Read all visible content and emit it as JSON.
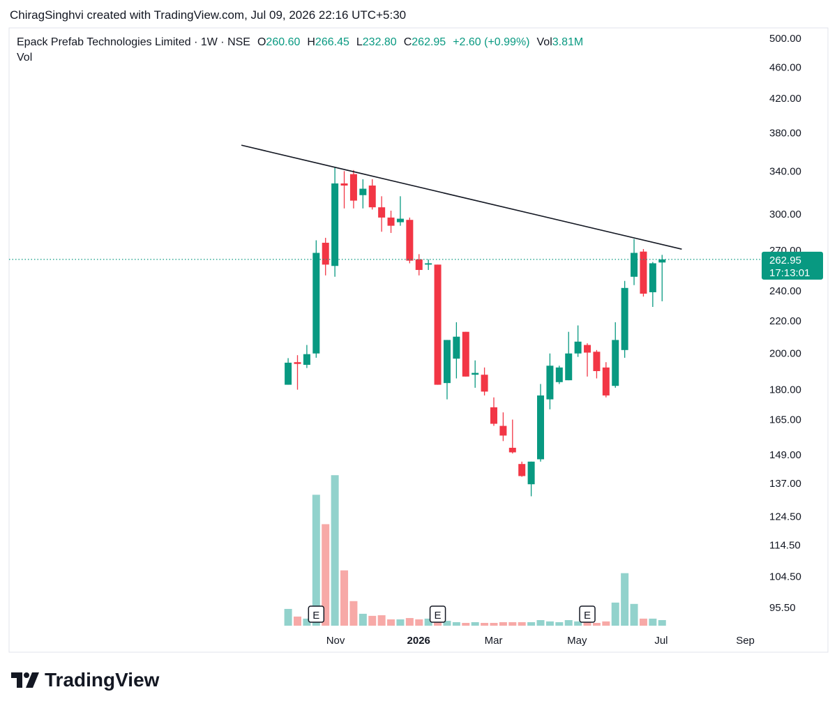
{
  "page": {
    "credit": "ChiragSinghvi created with TradingView.com, Jul 09, 2026 22:16 UTC+5:30",
    "logo": "TradingView"
  },
  "chart_data": {
    "type": "candlestick",
    "title": "Epack Prefab Technologies Limited · 1W · NSE",
    "legend": [
      [
        "O",
        "260.60"
      ],
      [
        "H",
        "266.45"
      ],
      [
        "L",
        "232.80"
      ],
      [
        "C",
        "262.95"
      ]
    ],
    "change": "+2.60 (+0.99%)",
    "volume_label": "Vol",
    "volume_value": "3.81M",
    "volume_pane_label": "Vol",
    "countdown": "17:13:01",
    "open": [
      182.6,
      195,
      193.5,
      200,
      276,
      258,
      328,
      337,
      317,
      326,
      306,
      297,
      293,
      295,
      263,
      259,
      259,
      183.5,
      197,
      213,
      188,
      188,
      171,
      162,
      152,
      145,
      136.7,
      147,
      175,
      184,
      185,
      200,
      205,
      201,
      192,
      182,
      202,
      250,
      269,
      239,
      260.6
    ],
    "high": [
      197.3,
      199,
      205,
      278,
      280,
      344,
      340,
      341,
      332,
      332,
      316,
      303,
      316,
      297,
      267,
      263,
      259,
      208,
      219,
      213,
      196,
      192,
      176,
      168.5,
      165,
      146,
      146,
      183,
      200,
      193,
      213,
      217,
      206,
      202,
      195,
      219,
      247,
      279,
      271,
      261,
      266.45
    ],
    "low": [
      182.6,
      180,
      191.7,
      197.5,
      251,
      250,
      305,
      305,
      305,
      304,
      285,
      284,
      290,
      260,
      251,
      255,
      182.6,
      175,
      186,
      187,
      181,
      177,
      162,
      155,
      149.5,
      139.7,
      132,
      146,
      170,
      183,
      185,
      198,
      187,
      186,
      176,
      181,
      197.5,
      244,
      236,
      229,
      232.8
    ],
    "close": [
      194.7,
      194,
      199.6,
      268,
      259,
      328,
      326,
      312,
      323,
      306,
      297,
      290,
      296,
      262,
      255,
      260,
      182.6,
      208,
      210,
      187,
      189,
      179,
      163,
      157.5,
      150,
      140,
      146,
      177,
      193,
      192,
      200,
      207,
      200.5,
      190,
      177,
      208,
      242,
      268,
      238,
      260,
      262.95
    ],
    "volume": [
      11.4,
      6.2,
      4.8,
      89.0,
      69.0,
      102.3,
      37.6,
      16.7,
      8.1,
      6.7,
      7.1,
      4.3,
      4.3,
      5.2,
      4.3,
      4.8,
      4.3,
      3.3,
      2.4,
      1.9,
      2.4,
      1.9,
      1.9,
      2.4,
      2.4,
      2.4,
      2.4,
      3.8,
      2.9,
      2.4,
      3.8,
      2.9,
      2.9,
      1.9,
      2.9,
      15.7,
      35.7,
      14.8,
      4.8,
      4.8,
      3.81
    ],
    "events": [
      null,
      null,
      null,
      "E",
      null,
      null,
      null,
      null,
      null,
      null,
      null,
      null,
      null,
      null,
      null,
      null,
      "E",
      null,
      null,
      null,
      null,
      null,
      null,
      null,
      null,
      null,
      null,
      null,
      null,
      null,
      null,
      null,
      "E",
      null,
      null,
      null,
      null,
      null,
      null,
      null,
      null
    ],
    "up_color": "#089981",
    "down_color": "#f23645",
    "volume_up_color": "#92d2cc",
    "volume_down_color": "#f7a9a7",
    "log_scale": true,
    "ylim": [
      90.4,
      515.7
    ],
    "yticks": [
      {
        "value": 500,
        "label": "500.00"
      },
      {
        "value": 460,
        "label": "460.00"
      },
      {
        "value": 420,
        "label": "420.00"
      },
      {
        "value": 380,
        "label": "380.00"
      },
      {
        "value": 340,
        "label": "340.00"
      },
      {
        "value": 300,
        "label": "300.00"
      },
      {
        "value": 270,
        "label": "270.00"
      },
      {
        "value": 240,
        "label": "240.00"
      },
      {
        "value": 220,
        "label": "220.00"
      },
      {
        "value": 200,
        "label": "200.00"
      },
      {
        "value": 180,
        "label": "180.00"
      },
      {
        "value": 165,
        "label": "165.00"
      },
      {
        "value": 149,
        "label": "149.00"
      },
      {
        "value": 137,
        "label": "137.00"
      },
      {
        "value": 124.5,
        "label": "124.50"
      },
      {
        "value": 114.5,
        "label": "114.50"
      },
      {
        "value": 104.5,
        "label": "104.50"
      },
      {
        "value": 95.5,
        "label": "95.50"
      }
    ],
    "y2lim": [
      0,
      110
    ],
    "xlim": [
      -29.85,
      50.5
    ],
    "xticks": [
      {
        "value": 5.07,
        "label": "Nov"
      },
      {
        "value": 13.96,
        "label": "2026"
      },
      {
        "value": 21.97,
        "label": "Mar"
      },
      {
        "value": 30.9,
        "label": "May"
      },
      {
        "value": 39.9,
        "label": "Jul"
      },
      {
        "value": 48.9,
        "label": "Sep"
      }
    ],
    "trendline": {
      "x": [
        -5,
        42.1
      ],
      "y": [
        366.6,
        270.9
      ],
      "color": "#131722"
    }
  }
}
